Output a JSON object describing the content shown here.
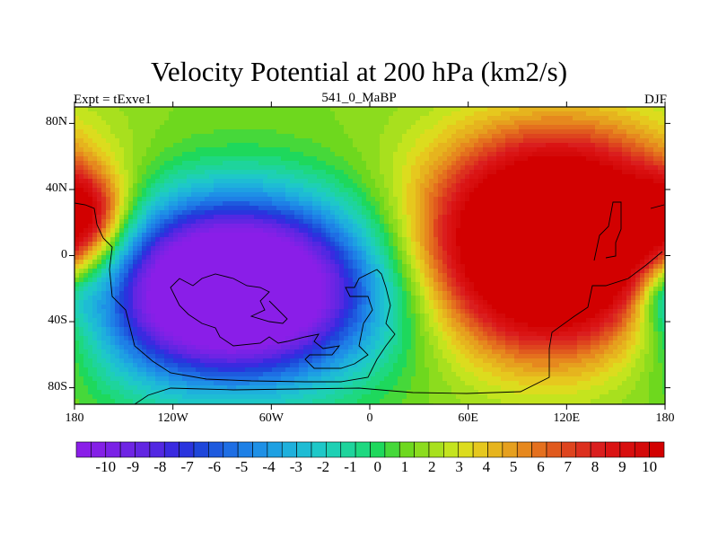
{
  "chart_data": {
    "type": "heatmap",
    "title": "Velocity Potential at 200 hPa (km2/s)",
    "left_subtitle": "Expt = tExve1",
    "center_subtitle": "541_0_MaBP",
    "right_subtitle": "DJF",
    "x_ticks": [
      {
        "value": -180,
        "label": "180"
      },
      {
        "value": -120,
        "label": "120W"
      },
      {
        "value": -60,
        "label": "60W"
      },
      {
        "value": 0,
        "label": "0"
      },
      {
        "value": 60,
        "label": "60E"
      },
      {
        "value": 120,
        "label": "120E"
      },
      {
        "value": 180,
        "label": "180"
      }
    ],
    "y_ticks": [
      {
        "value": 80,
        "label": "80N"
      },
      {
        "value": 40,
        "label": "40N"
      },
      {
        "value": 0,
        "label": "0"
      },
      {
        "value": -40,
        "label": "40S"
      },
      {
        "value": -80,
        "label": "80S"
      }
    ],
    "xlim": [
      -180,
      180
    ],
    "ylim": [
      -90,
      90
    ],
    "colorbar_labels": [
      "-10",
      "-9",
      "-8",
      "-7",
      "-6",
      "-5",
      "-4",
      "-3",
      "-2",
      "-1",
      "0",
      "1",
      "2",
      "3",
      "4",
      "5",
      "6",
      "7",
      "8",
      "9",
      "10"
    ],
    "contour_levels": [
      -10,
      -9.5,
      -9,
      -8.5,
      -8,
      -7.5,
      -7,
      -6.5,
      -6,
      -5.5,
      -5,
      -4.5,
      -4,
      -3.5,
      -3,
      -2.5,
      -2,
      -1.5,
      -1,
      -0.5,
      0,
      0.5,
      1,
      1.5,
      2,
      2.5,
      3,
      3.5,
      4,
      4.5,
      5,
      5.5,
      6,
      6.5,
      7,
      7.5,
      8,
      8.5,
      9,
      9.5,
      10
    ],
    "colors": [
      "#8a1ee8",
      "#8420e6",
      "#7a22e6",
      "#6e24e4",
      "#6226e2",
      "#5228e2",
      "#3a2ae0",
      "#2a34de",
      "#1e46da",
      "#1e5ade",
      "#1e6ee4",
      "#1e80e6",
      "#1e90e6",
      "#1ea0e2",
      "#1eb0dc",
      "#1ebcd4",
      "#1ec8c8",
      "#1ed0b4",
      "#1ed49c",
      "#1ed880",
      "#1ed85c",
      "#46d83a",
      "#6ed81e",
      "#8cdc1e",
      "#a8e01e",
      "#c4e41e",
      "#dcdc1e",
      "#e6c81e",
      "#e6b41e",
      "#e6a01e",
      "#e6881e",
      "#e4701e",
      "#e05a1e",
      "#de441e",
      "#dc301e",
      "#da1e1e",
      "#da1414",
      "#d80e0e",
      "#d40a0a",
      "#d20000"
    ],
    "fields": {
      "high_center": {
        "lon": 110,
        "lat": 5,
        "value": 10
      },
      "low_center": {
        "lon": -85,
        "lat": -20,
        "value": -10
      },
      "high_dateline_north": {
        "lon": -180,
        "lat": 25,
        "value": 8
      }
    }
  }
}
